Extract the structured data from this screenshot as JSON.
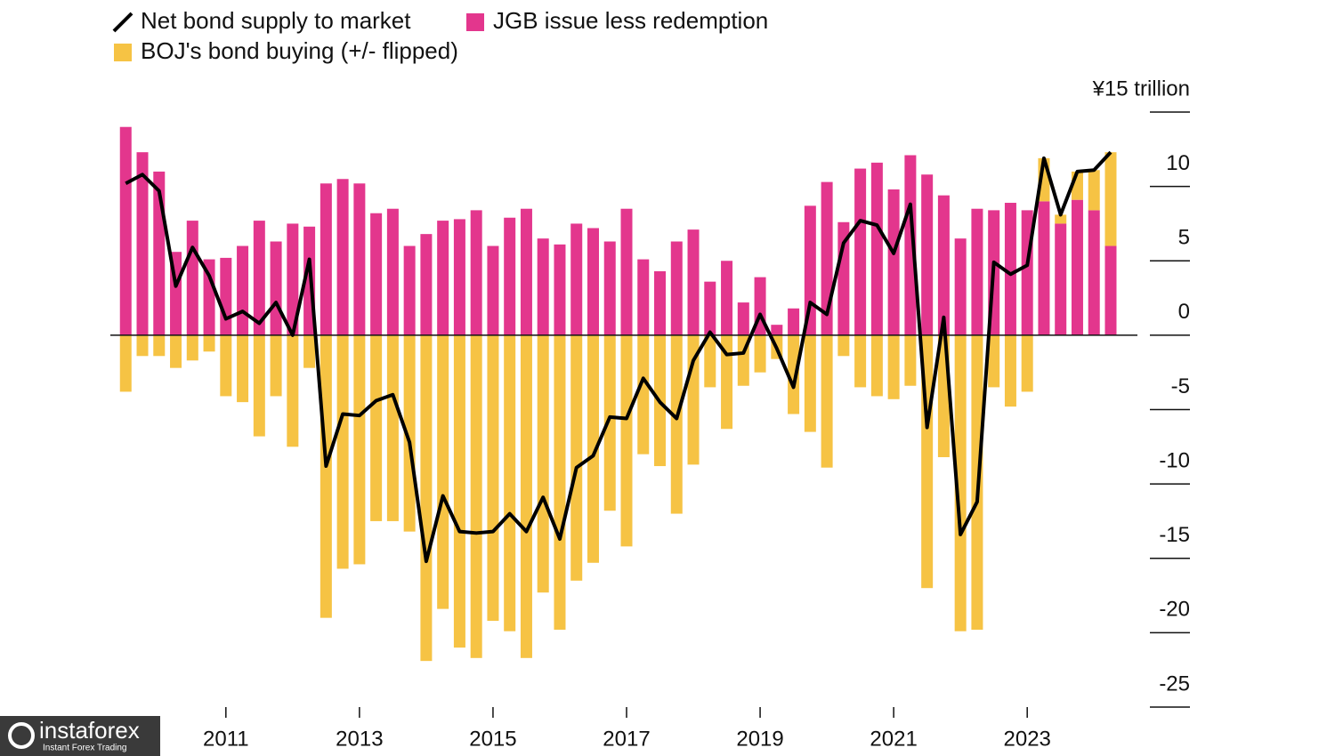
{
  "chart_data": {
    "type": "stacked-bar-line",
    "x": [
      2009.5,
      2009.75,
      2010,
      2010.25,
      2010.5,
      2010.75,
      2011,
      2011.25,
      2011.5,
      2011.75,
      2012,
      2012.25,
      2012.5,
      2012.75,
      2013,
      2013.25,
      2013.5,
      2013.75,
      2014,
      2014.25,
      2014.5,
      2014.75,
      2015,
      2015.25,
      2015.5,
      2015.75,
      2016,
      2016.25,
      2016.5,
      2016.75,
      2017,
      2017.25,
      2017.5,
      2017.75,
      2018,
      2018.25,
      2018.5,
      2018.75,
      2019,
      2019.25,
      2019.5,
      2019.75,
      2020,
      2020.25,
      2020.5,
      2020.75,
      2021,
      2021.25,
      2021.5,
      2021.75,
      2022,
      2022.25,
      2022.5,
      2022.75,
      2023,
      2023.25,
      2023.5,
      2023.75,
      2024,
      2024.25
    ],
    "series": [
      {
        "name": "Net bond supply to market",
        "color": "#000000",
        "kind": "line",
        "values": [
          10.2,
          10.8,
          9.7,
          3.3,
          5.9,
          4.0,
          1.1,
          1.6,
          0.8,
          2.2,
          0,
          5.1,
          -8.8,
          -5.3,
          -5.4,
          -4.4,
          -4.0,
          -7.2,
          -15.2,
          -10.8,
          -13.2,
          -13.3,
          -13.2,
          -12.0,
          -13.2,
          -10.9,
          -13.7,
          -8.9,
          -8.1,
          -5.5,
          -5.6,
          -2.9,
          -4.5,
          -5.6,
          -1.7,
          0.2,
          -1.3,
          -1.2,
          1.4,
          -0.9,
          -3.5,
          2.2,
          1.4,
          6.2,
          7.7,
          7.4,
          5.5,
          8.8,
          -6.2,
          1.2,
          -13.4,
          -11.2,
          4.9,
          4.1,
          4.7,
          11.9,
          8.1,
          11.0,
          11.1,
          12.3
        ]
      },
      {
        "name": "JGB issue less redemption",
        "color": "#e3368d",
        "kind": "bar",
        "values": [
          14.0,
          12.3,
          11.0,
          5.6,
          7.7,
          5.1,
          5.2,
          6.0,
          7.7,
          6.3,
          7.5,
          7.3,
          10.2,
          10.5,
          10.2,
          8.2,
          8.5,
          6.0,
          6.8,
          7.7,
          7.8,
          8.4,
          6.0,
          7.9,
          8.5,
          6.5,
          6.1,
          7.5,
          7.2,
          6.3,
          8.5,
          5.1,
          4.3,
          6.3,
          7.1,
          3.6,
          5.0,
          2.2,
          3.9,
          0.7,
          1.8,
          8.7,
          10.3,
          7.6,
          11.2,
          11.6,
          9.8,
          12.1,
          10.8,
          9.4,
          6.5,
          8.5,
          8.4,
          8.9,
          8.4,
          9.0,
          7.5,
          9.1,
          8.4,
          6.0
        ]
      },
      {
        "name": "BOJ's bond buying (+/- flipped)",
        "color": "#f6c344",
        "kind": "bar",
        "values": [
          -3.8,
          -1.4,
          -1.4,
          -2.2,
          -1.7,
          -1.1,
          -4.1,
          -4.5,
          -6.8,
          -4.1,
          -7.5,
          -2.2,
          -19.0,
          -15.7,
          -15.4,
          -12.5,
          -12.5,
          -13.2,
          -21.9,
          -18.4,
          -21.0,
          -21.7,
          -19.2,
          -19.9,
          -21.7,
          -17.3,
          -19.8,
          -16.5,
          -15.3,
          -11.8,
          -14.2,
          -8.0,
          -8.8,
          -12.0,
          -8.7,
          -3.5,
          -6.3,
          -3.4,
          -2.5,
          -1.6,
          -5.3,
          -6.5,
          -8.9,
          -1.4,
          -3.5,
          -4.1,
          -4.3,
          -3.4,
          -17.0,
          -8.2,
          -19.9,
          -19.8,
          -3.5,
          -4.8,
          -3.8,
          2.9,
          0.6,
          1.9,
          2.7,
          6.3
        ]
      }
    ],
    "xlim": [
      2009.27,
      2024.65
    ],
    "xticks": [
      2011,
      2013,
      2015,
      2017,
      2019,
      2021,
      2023
    ],
    "ylim": [
      -25,
      15
    ],
    "yticks": [
      {
        "value": 15,
        "label": "¥15 trillion"
      },
      10,
      5,
      0,
      -5,
      -10,
      -15,
      -20,
      -25
    ]
  },
  "watermark": {
    "name": "instaforex",
    "tagline": "Instant Forex Trading"
  }
}
